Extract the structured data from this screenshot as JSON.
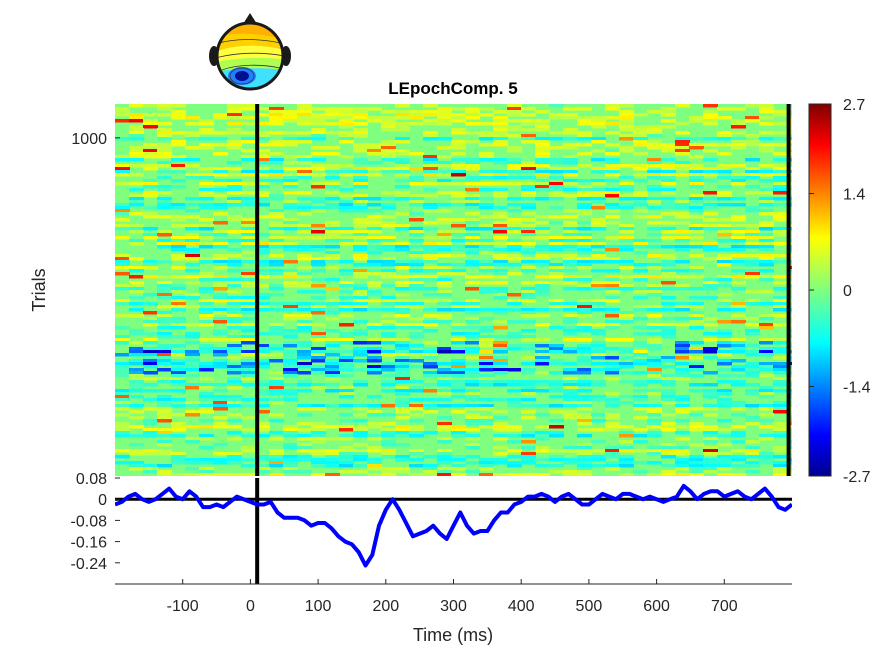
{
  "chart_data": [
    {
      "type": "heatmap",
      "title": "LEpochComp. 5",
      "ylabel": "Trials",
      "yticks": [
        {
          "value": 1000,
          "label": "1000"
        }
      ],
      "ylim": [
        1,
        1100
      ],
      "xlim": [
        -200,
        800
      ],
      "colorbar": {
        "colormap": "jet",
        "range": [
          -2.7,
          2.7
        ],
        "ticks": [
          {
            "value": 2.7,
            "label": "2.7"
          },
          {
            "value": 1.4,
            "label": "1.4"
          },
          {
            "value": 0,
            "label": "0"
          },
          {
            "value": -1.4,
            "label": "-1.4"
          },
          {
            "value": -2.7,
            "label": "-2.7"
          }
        ]
      },
      "vertical_lines_ms": [
        10,
        795
      ],
      "topomap": {
        "icon": "scalp-topography-icon"
      }
    },
    {
      "type": "line",
      "xlabel": "Time (ms)",
      "xlim": [
        -200,
        800
      ],
      "ylim": [
        -0.32,
        0.08
      ],
      "xticks": [
        {
          "value": -100,
          "label": "-100"
        },
        {
          "value": 0,
          "label": "0"
        },
        {
          "value": 100,
          "label": "100"
        },
        {
          "value": 200,
          "label": "200"
        },
        {
          "value": 300,
          "label": "300"
        },
        {
          "value": 400,
          "label": "400"
        },
        {
          "value": 500,
          "label": "500"
        },
        {
          "value": 600,
          "label": "600"
        },
        {
          "value": 700,
          "label": "700"
        }
      ],
      "yticks": [
        {
          "value": 0.08,
          "label": "0.08"
        },
        {
          "value": 0,
          "label": "0"
        },
        {
          "value": -0.08,
          "label": "-0.08"
        },
        {
          "value": -0.16,
          "label": "-0.16"
        },
        {
          "value": -0.24,
          "label": "-0.24"
        }
      ],
      "series": [
        {
          "color": "#0000ff",
          "x": [
            -200,
            -190,
            -180,
            -170,
            -160,
            -150,
            -140,
            -130,
            -120,
            -110,
            -100,
            -90,
            -80,
            -70,
            -60,
            -50,
            -40,
            -30,
            -20,
            -10,
            0,
            10,
            20,
            30,
            40,
            50,
            60,
            70,
            80,
            90,
            100,
            110,
            120,
            130,
            140,
            150,
            160,
            170,
            180,
            190,
            200,
            210,
            220,
            230,
            240,
            250,
            260,
            270,
            280,
            290,
            300,
            310,
            320,
            330,
            340,
            350,
            360,
            370,
            380,
            390,
            400,
            410,
            420,
            430,
            440,
            450,
            460,
            470,
            480,
            490,
            500,
            510,
            520,
            530,
            540,
            550,
            560,
            570,
            580,
            590,
            600,
            610,
            620,
            630,
            640,
            650,
            660,
            670,
            680,
            690,
            700,
            710,
            720,
            730,
            740,
            750,
            760,
            770,
            780,
            790,
            800
          ],
          "y": [
            -0.02,
            -0.01,
            0.01,
            0.02,
            0.0,
            -0.01,
            0.0,
            0.02,
            0.04,
            0.01,
            0.0,
            0.03,
            0.01,
            -0.03,
            -0.03,
            -0.02,
            -0.03,
            -0.01,
            0.01,
            0.0,
            -0.01,
            -0.02,
            -0.02,
            -0.01,
            -0.05,
            -0.07,
            -0.07,
            -0.07,
            -0.08,
            -0.1,
            -0.09,
            -0.09,
            -0.11,
            -0.14,
            -0.16,
            -0.17,
            -0.2,
            -0.25,
            -0.21,
            -0.1,
            -0.04,
            0.0,
            -0.04,
            -0.09,
            -0.14,
            -0.13,
            -0.12,
            -0.1,
            -0.13,
            -0.15,
            -0.1,
            -0.05,
            -0.1,
            -0.13,
            -0.12,
            -0.12,
            -0.08,
            -0.05,
            -0.05,
            -0.02,
            -0.01,
            0.01,
            0.01,
            0.02,
            0.01,
            -0.01,
            0.01,
            0.02,
            0.0,
            -0.02,
            -0.02,
            0.0,
            0.02,
            0.01,
            0.0,
            0.02,
            0.02,
            0.01,
            0.0,
            0.01,
            0.0,
            -0.01,
            0.0,
            0.01,
            0.05,
            0.03,
            0.0,
            0.02,
            0.03,
            0.03,
            0.01,
            0.02,
            0.03,
            0.01,
            0.0,
            0.02,
            0.04,
            0.01,
            -0.03,
            -0.04,
            -0.02
          ]
        }
      ],
      "hline_y": 0,
      "vline_x": 10
    }
  ]
}
